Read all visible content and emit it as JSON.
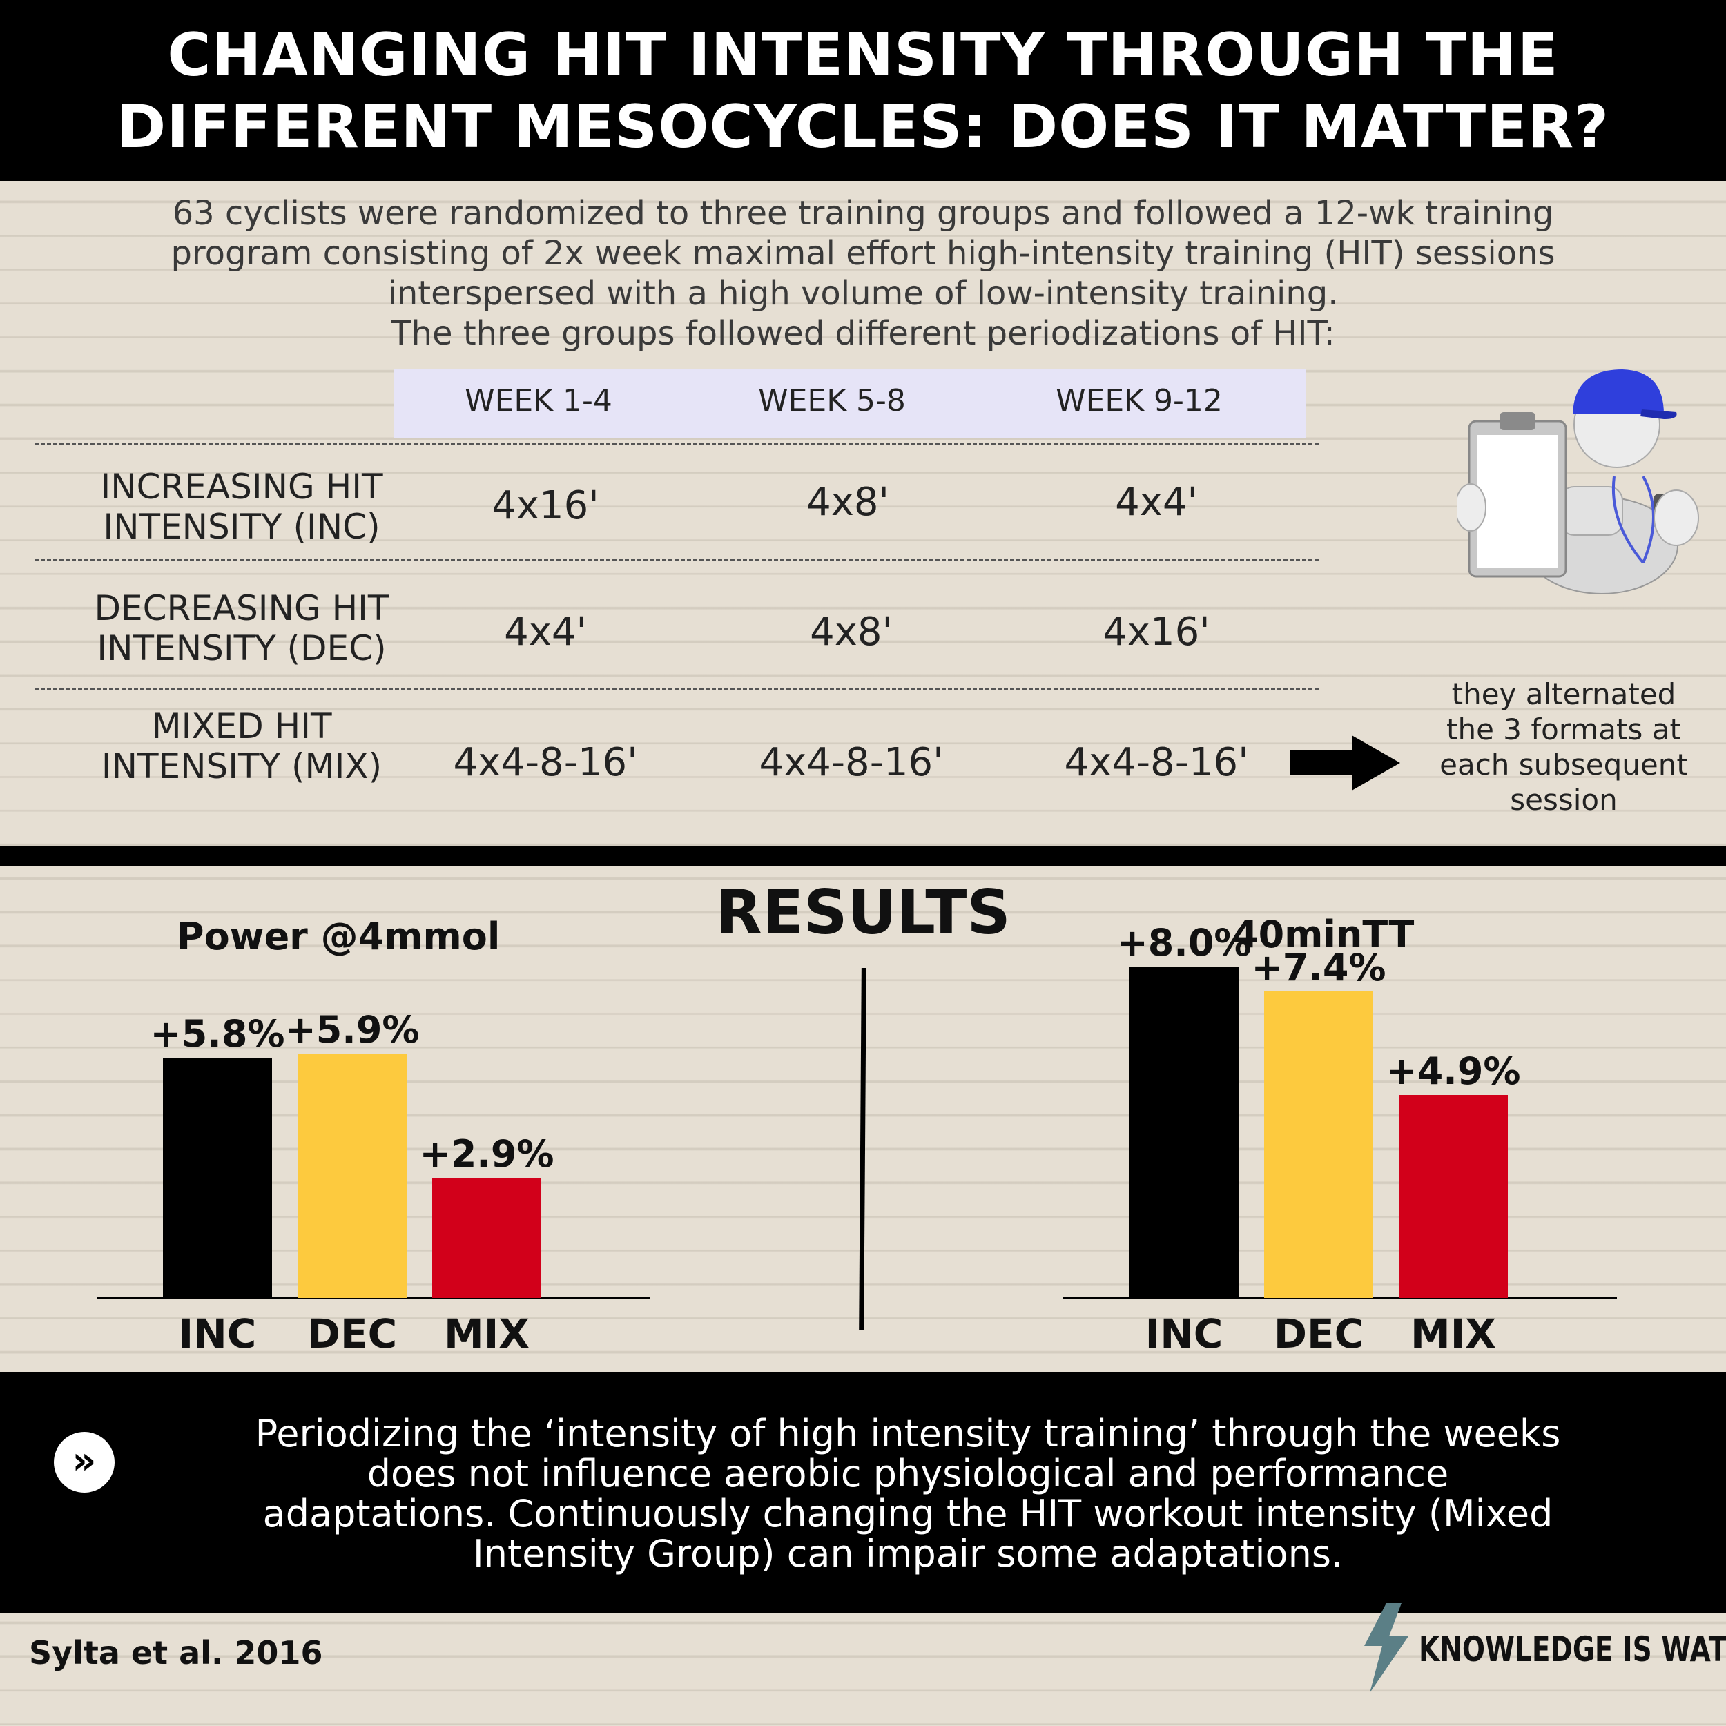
{
  "title": {
    "line1": "CHANGING HIT INTENSITY THROUGH THE",
    "line2": "DIFFERENT MESOCYCLES: DOES IT MATTER?"
  },
  "intro": {
    "line1": "63 cyclists were randomized to three training groups and  followed a 12-wk training",
    "line2": "program consisting of 2x week maximal effort high-intensity training (HIT) sessions",
    "line3": "interspersed with a high volume of low-intensity training.",
    "line4": "The three groups followed different periodizations of HIT:"
  },
  "protocol": {
    "weeks": [
      "WEEK 1-4",
      "WEEK 5-8",
      "WEEK 9-12"
    ],
    "rows": [
      {
        "label_line1": "INCREASING HIT",
        "label_line2": "INTENSITY (INC)",
        "cells": [
          "4x16'",
          "4x8'",
          "4x4'"
        ]
      },
      {
        "label_line1": "DECREASING HIT",
        "label_line2": "INTENSITY (DEC)",
        "cells": [
          "4x4'",
          "4x8'",
          "4x16'"
        ]
      },
      {
        "label_line1": "MIXED HIT",
        "label_line2": "INTENSITY (MIX)",
        "cells": [
          "4x4-8-16'",
          "4x4-8-16'",
          "4x4-8-16'"
        ]
      }
    ],
    "mix_note": {
      "line1": "they alternated",
      "line2": "the 3 formats at",
      "line3": "each subsequent",
      "line4": "session"
    }
  },
  "results": {
    "heading": "RESULTS"
  },
  "chart_data": [
    {
      "type": "bar",
      "title": "Power @4mmol",
      "categories": [
        "INC",
        "DEC",
        "MIX"
      ],
      "values": [
        5.8,
        5.9,
        2.9
      ],
      "data_labels": [
        "+5.8%",
        "+5.9%",
        "+2.9%"
      ],
      "colors": [
        "#000000",
        "#fdca3e",
        "#d2001a"
      ]
    },
    {
      "type": "bar",
      "title": "40minTT",
      "categories": [
        "INC",
        "DEC",
        "MIX"
      ],
      "values": [
        8.0,
        7.4,
        4.9
      ],
      "data_labels": [
        "+8.0%",
        "+7.4%",
        "+4.9%"
      ],
      "colors": [
        "#000000",
        "#fdca3e",
        "#d2001a"
      ]
    }
  ],
  "conclusion": {
    "icon": "double-chevron-right-icon",
    "line1": "Periodizing the ‘intensity of high intensity training’ through the weeks",
    "line2": "does not influence aerobic physiological and performance",
    "line3": "adaptations. Continuously changing the HIT workout intensity (Mixed",
    "line4": "Intensity Group) can impair some adaptations."
  },
  "citation": "Sylta et al. 2016",
  "brand": {
    "name": "KNOWLEDGE IS WATT",
    "icon": "lightning-bolt-icon",
    "icon_color": "#5b7f86"
  }
}
